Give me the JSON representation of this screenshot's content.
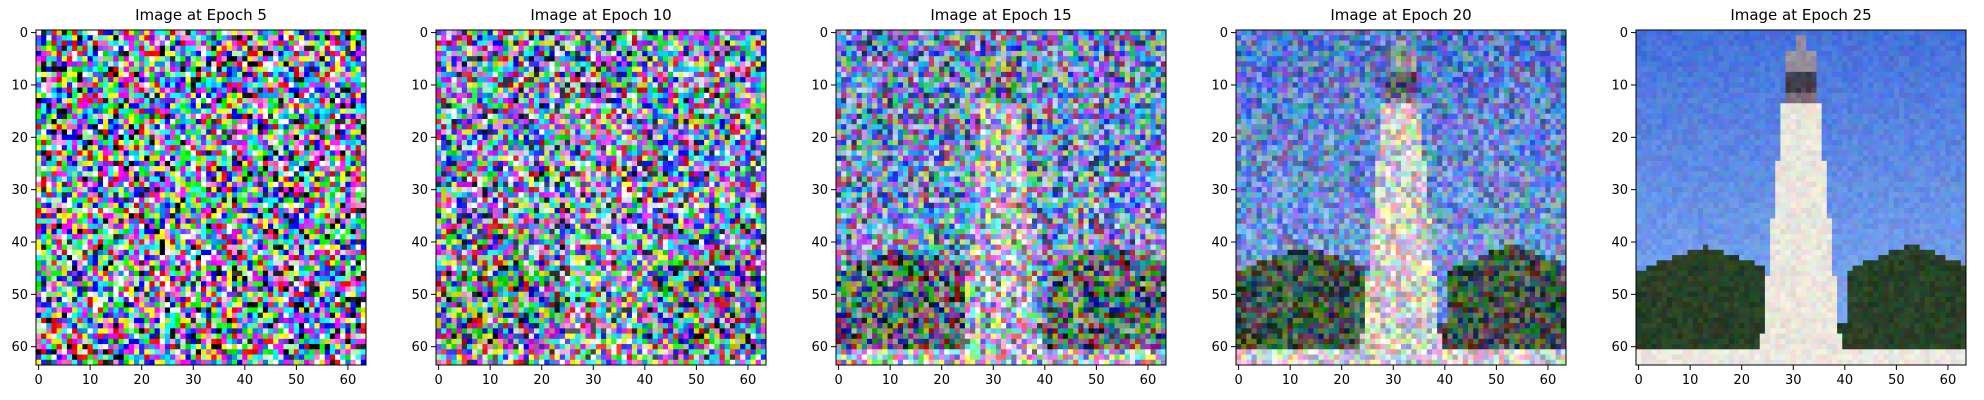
{
  "figure": {
    "panels": [
      {
        "title": "Image at Epoch 5",
        "epoch": 5,
        "noise_level": 1.0
      },
      {
        "title": "Image at Epoch 10",
        "epoch": 10,
        "noise_level": 0.8
      },
      {
        "title": "Image at Epoch 15",
        "epoch": 15,
        "noise_level": 0.58
      },
      {
        "title": "Image at Epoch 20",
        "epoch": 20,
        "noise_level": 0.33
      },
      {
        "title": "Image at Epoch 25",
        "epoch": 25,
        "noise_level": 0.08
      }
    ],
    "image_resolution": 64,
    "x_ticks": [
      "0",
      "10",
      "20",
      "30",
      "40",
      "50",
      "60"
    ],
    "y_ticks": [
      "0",
      "10",
      "20",
      "30",
      "40",
      "50",
      "60"
    ],
    "scene": {
      "subject": "white lighthouse tower",
      "sky_color": "#3f6fe0",
      "tower_color": "#f3eee0",
      "foliage_color": "#203a1c",
      "ground_color": "#f4f1e6"
    }
  }
}
